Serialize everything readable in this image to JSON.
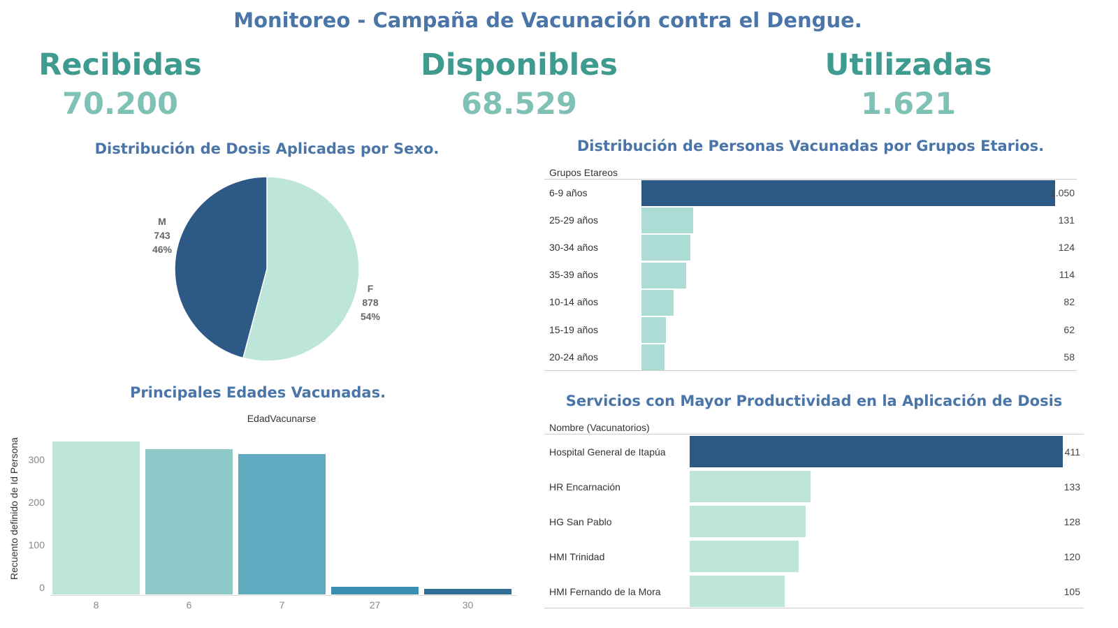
{
  "title": "Monitoreo - Campaña de Vacunación contra el Dengue.",
  "kpis": [
    {
      "label": "Recibidas",
      "value": "70.200"
    },
    {
      "label": "Disponibles",
      "value": "68.529"
    },
    {
      "label": "Utilizadas",
      "value": "1.621"
    }
  ],
  "colors": {
    "dark": "#2d5986",
    "light": "#bde5d9",
    "mid": "#acdcd4"
  },
  "chart_data": [
    {
      "type": "pie",
      "title": "Distribución de Dosis Aplicadas por Sexo.",
      "slices": [
        {
          "label": "M",
          "value": 743,
          "pct": "46%"
        },
        {
          "label": "F",
          "value": 878,
          "pct": "54%"
        }
      ]
    },
    {
      "type": "bar",
      "orientation": "horizontal",
      "title": "Distribución de Personas Vacunadas por Grupos Etarios.",
      "header": "Grupos Etareos",
      "categories": [
        "6-9 años",
        "25-29 años",
        "30-34 años",
        "35-39 años",
        "10-14 años",
        "15-19 años",
        "20-24 años"
      ],
      "values": [
        1050,
        131,
        124,
        114,
        82,
        62,
        58
      ],
      "labels": [
        "1.050",
        "131",
        "124",
        "114",
        "82",
        "62",
        "58"
      ]
    },
    {
      "type": "bar",
      "title": "Principales Edades Vacunadas.",
      "xlabel": "EdadVacunarse",
      "ylabel": "Recuento definido de Id Persona",
      "categories": [
        "8",
        "6",
        "7",
        "27",
        "30"
      ],
      "values": [
        359,
        341,
        330,
        18,
        13
      ],
      "yticks": [
        "0",
        "100",
        "200",
        "300"
      ],
      "ylim": [
        0,
        360
      ]
    },
    {
      "type": "bar",
      "orientation": "horizontal",
      "title": "Servicios con Mayor Productividad en la Aplicación de Dosis",
      "header": "Nombre (Vacunatorios)",
      "categories": [
        "Hospital General de Itapúa",
        "HR Encarnación",
        "HG San Pablo",
        "HMI Trinidad",
        "HMI Fernando de la Mora"
      ],
      "values": [
        411,
        133,
        128,
        120,
        105
      ],
      "labels": [
        "411",
        "133",
        "128",
        "120",
        "105"
      ]
    }
  ]
}
